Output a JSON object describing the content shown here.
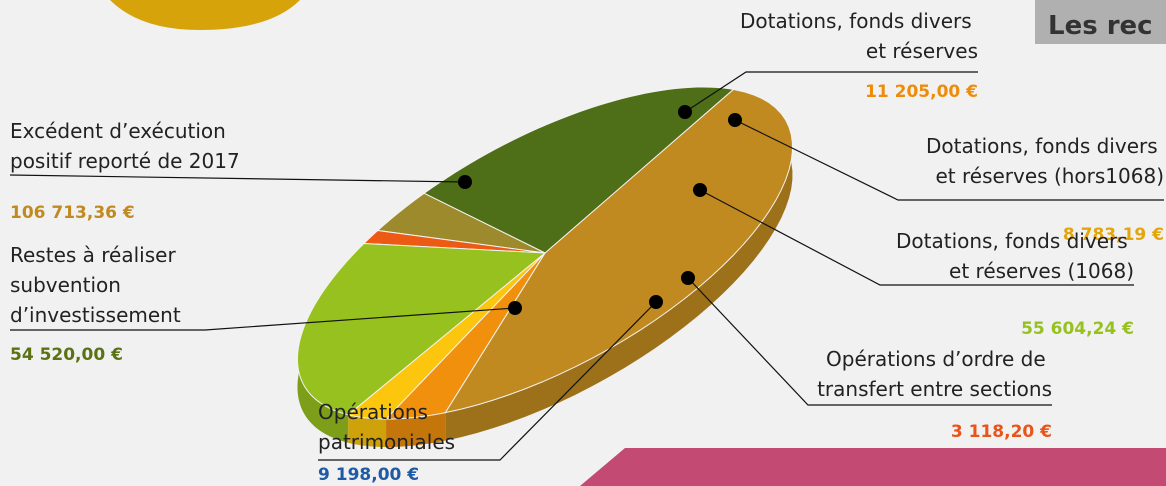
{
  "header": {
    "title_fragment": "Les rec"
  },
  "chart_data": {
    "type": "pie",
    "three_d": true,
    "series": [
      {
        "name_lines": [
          "Excédent d’exécution",
          "positif reporté de 2017"
        ],
        "value": 106713.36,
        "value_label": "106 713,36 €",
        "color": "#c08a20",
        "label_color": "#c08a20"
      },
      {
        "name_lines": [
          "Dotations, fonds divers",
          "et réserves"
        ],
        "value": 11205.0,
        "value_label": "11 205,00 €",
        "color": "#f0900c",
        "label_color": "#ee8c0a"
      },
      {
        "name_lines": [
          "Dotations, fonds divers",
          "et réserves (hors1068)"
        ],
        "value": 8783.19,
        "value_label": "8 783,19 €",
        "color": "#fcc60e",
        "label_color": "#e2a50c"
      },
      {
        "name_lines": [
          "Dotations, fonds divers",
          "et réserves (1068)"
        ],
        "value": 55604.24,
        "value_label": "55 604,24 €",
        "color": "#97c11f",
        "label_color": "#97c11f"
      },
      {
        "name_lines": [
          "Opérations d’ordre de",
          "transfert entre sections"
        ],
        "value": 3118.2,
        "value_label": "3 118,20 €",
        "color": "#ec5a14",
        "label_color": "#e8541a"
      },
      {
        "name_lines": [
          "Opérations",
          "patrimoniales"
        ],
        "value": 9198.0,
        "value_label": "9 198,00 €",
        "color": "#9d8a2c",
        "label_color": "#1f5aa6"
      },
      {
        "name_lines": [
          "Restes à réaliser",
          "subvention",
          "d’investissement"
        ],
        "value": 54520.0,
        "value_label": "54 520,00 €",
        "color": "#4e6e17",
        "label_color": "#5a7214"
      }
    ]
  }
}
